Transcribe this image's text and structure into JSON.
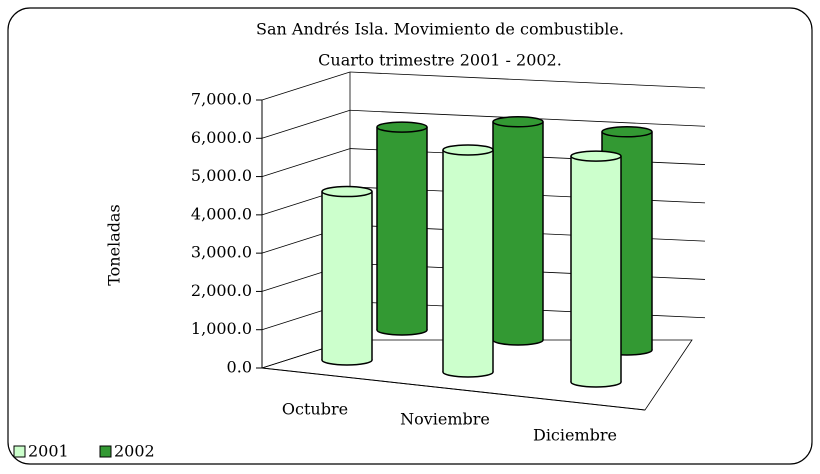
{
  "chart_data": {
    "type": "bar3d",
    "title": "San Andrés Isla. Movimiento de combustible.",
    "subtitle": "Cuarto trimestre 2001 - 2002.",
    "y_label": "Toneladas",
    "categories": [
      "Octubre",
      "Noviembre",
      "Diciembre"
    ],
    "series": [
      {
        "name": "2001",
        "color": "#ccffcc",
        "values": [
          4400,
          5800,
          5900
        ]
      },
      {
        "name": "2002",
        "color": "#339933",
        "values": [
          5300,
          5700,
          5700
        ]
      }
    ],
    "ylim": [
      0,
      7000
    ],
    "yticks": [
      {
        "value": 0,
        "label": "0.0"
      },
      {
        "value": 1000,
        "label": "1,000.0"
      },
      {
        "value": 2000,
        "label": "2,000.0"
      },
      {
        "value": 3000,
        "label": "3,000.0"
      },
      {
        "value": 4000,
        "label": "4,000.0"
      },
      {
        "value": 5000,
        "label": "5,000.0"
      },
      {
        "value": 6000,
        "label": "6,000.0"
      },
      {
        "value": 7000,
        "label": "7,000.0"
      }
    ],
    "grid": true,
    "legend": "bottom-left"
  }
}
